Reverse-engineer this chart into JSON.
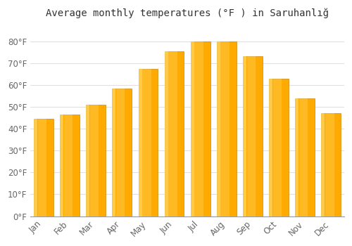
{
  "title": "Average monthly temperatures (°F ) in SaruhanlıÄ",
  "months": [
    "Jan",
    "Feb",
    "Mar",
    "Apr",
    "May",
    "Jun",
    "Jul",
    "Aug",
    "Sep",
    "Oct",
    "Nov",
    "Dec"
  ],
  "values": [
    44.5,
    46.5,
    51,
    58.5,
    67.5,
    75.5,
    80,
    80,
    73,
    63,
    54,
    47
  ],
  "bar_color_main": "#FFAA00",
  "bar_color_light": "#FFD966",
  "bar_edge_color": "#C8860A",
  "ylim": [
    0,
    88
  ],
  "yticks": [
    0,
    10,
    20,
    30,
    40,
    50,
    60,
    70,
    80
  ],
  "ytick_labels": [
    "0°F",
    "10°F",
    "20°F",
    "30°F",
    "40°F",
    "50°F",
    "60°F",
    "70°F",
    "80°F"
  ],
  "title_fontsize": 10,
  "tick_fontsize": 8.5,
  "bg_color": "#ffffff",
  "grid_color": "#e0e0e0",
  "bar_width": 0.75
}
